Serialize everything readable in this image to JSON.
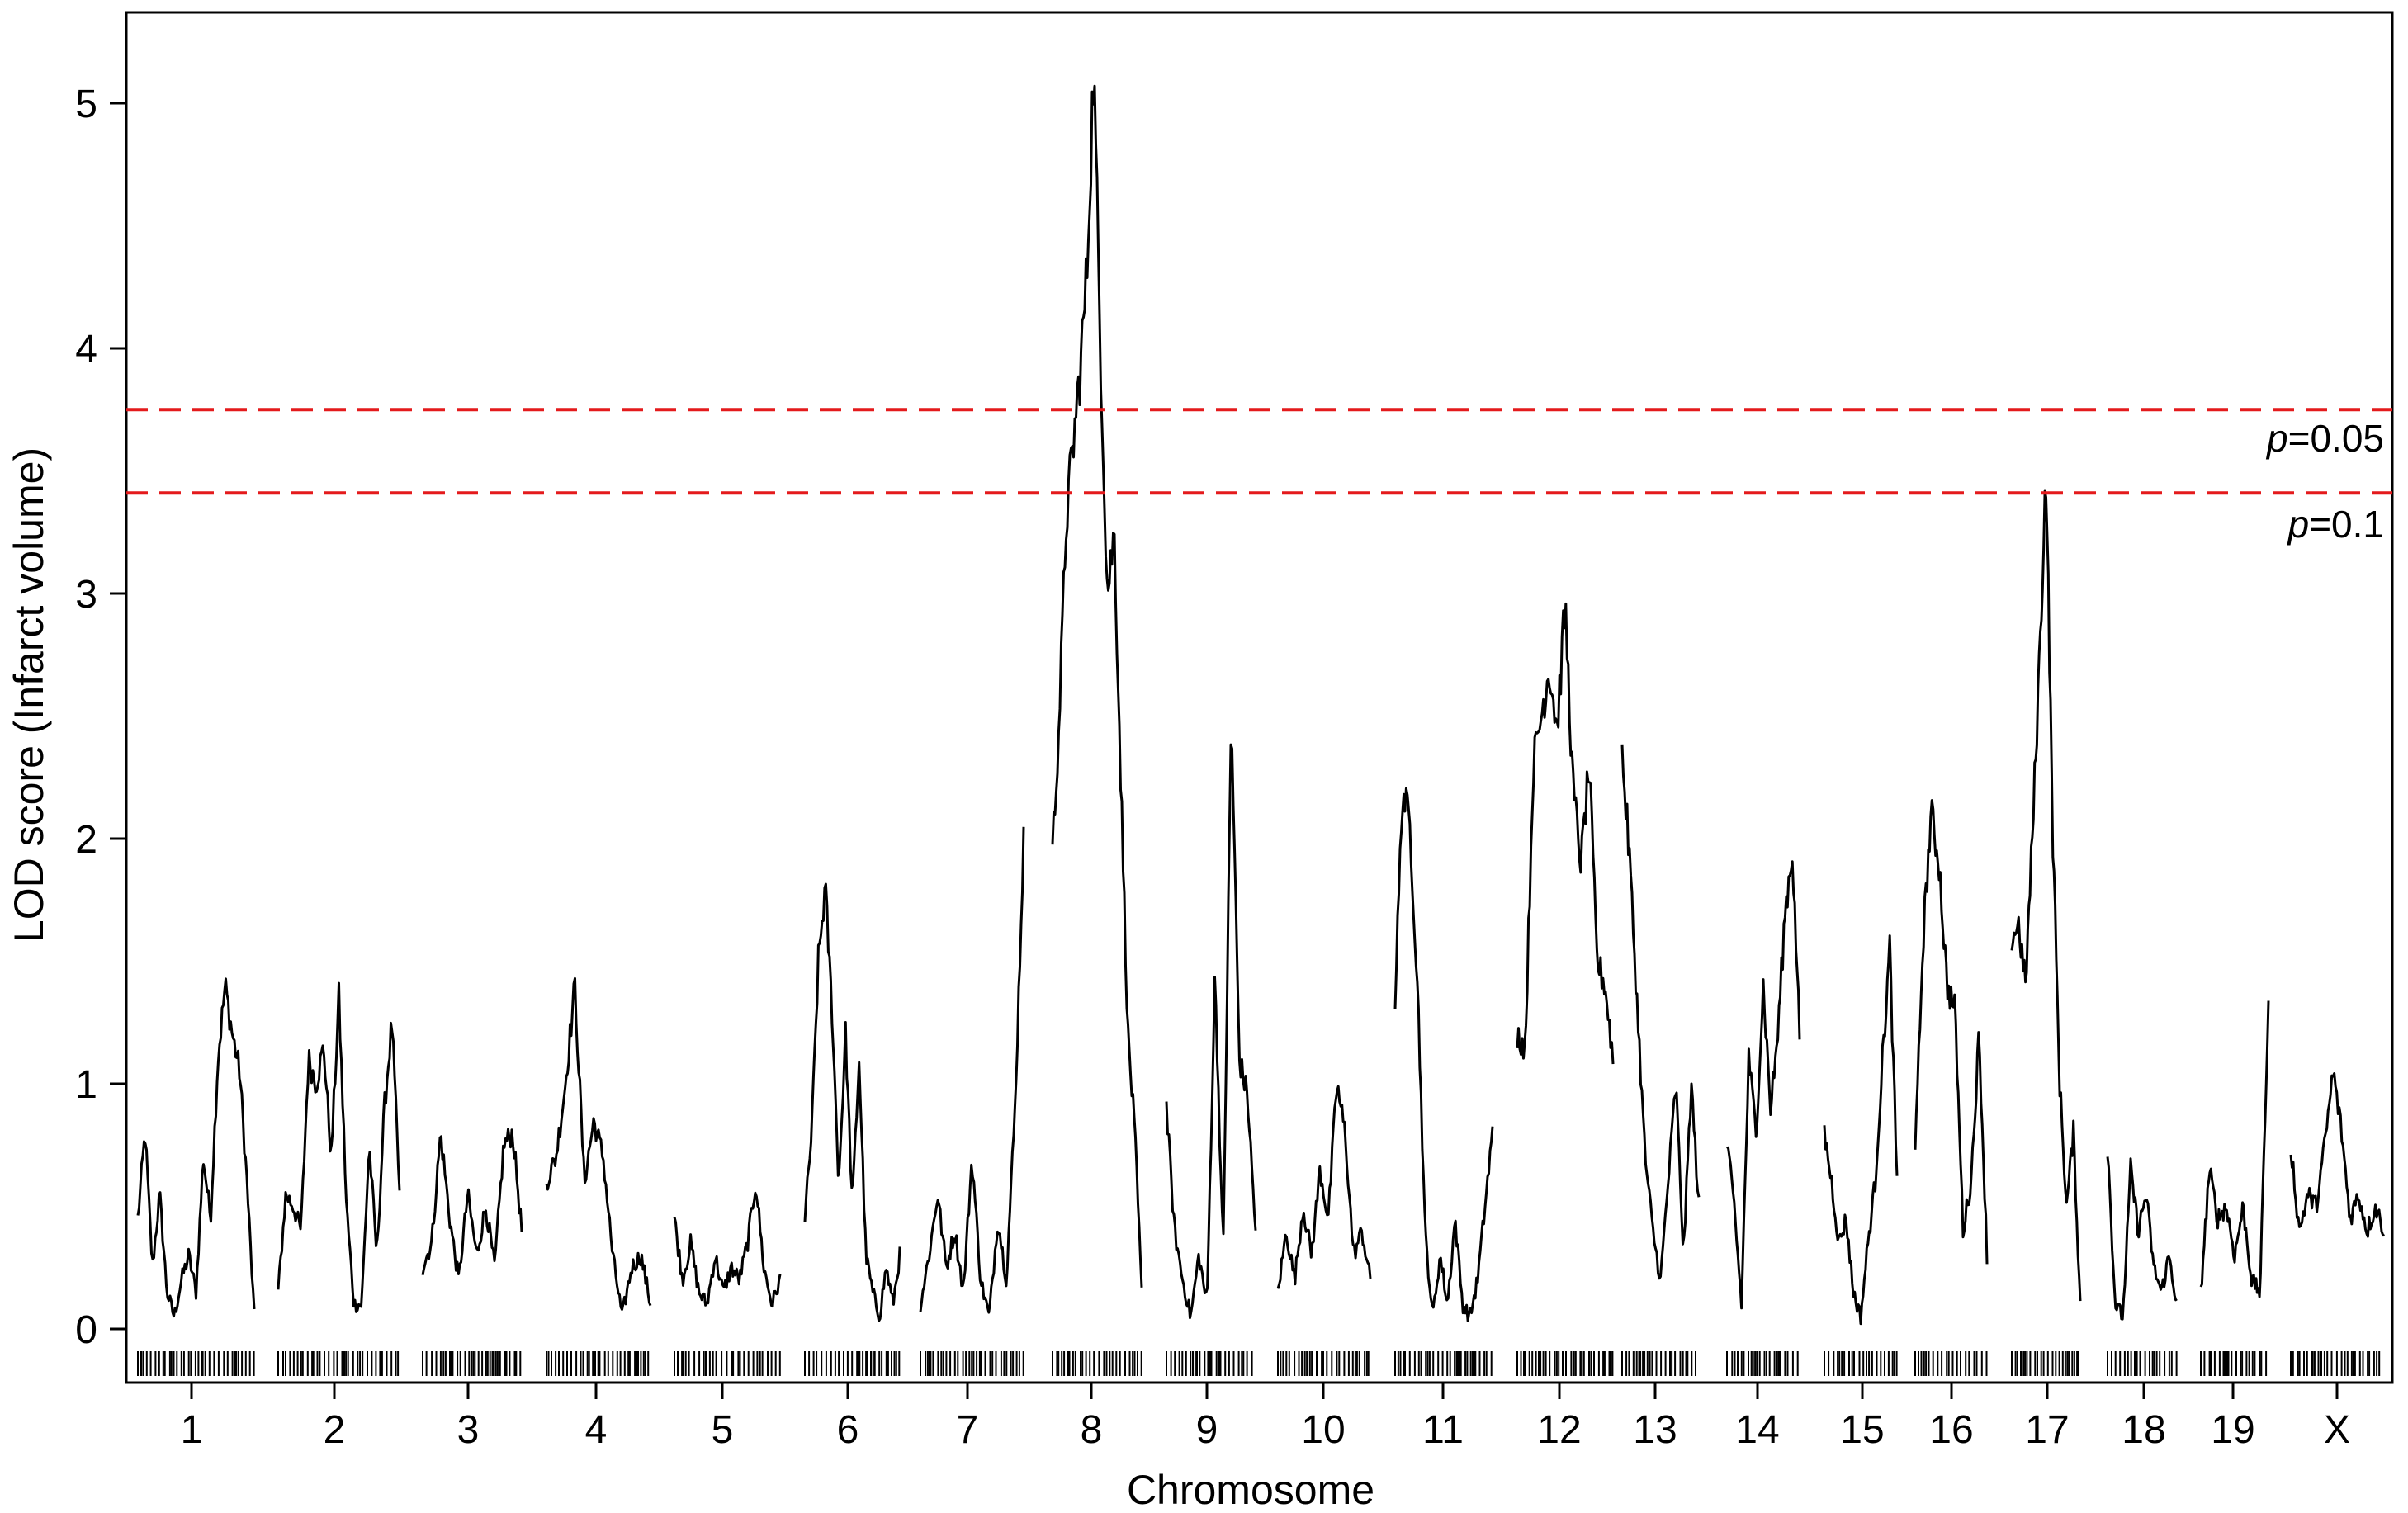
{
  "chart_data": {
    "type": "line",
    "title": "",
    "xlabel": "Chromosome",
    "ylabel": "LOD score (Infarct volume)",
    "ylim": [
      -0.15,
      5.35
    ],
    "yticks": [
      "0",
      "1",
      "2",
      "3",
      "4",
      "5"
    ],
    "grid": false,
    "legend": "none",
    "line_color": "#000000",
    "threshold_color": "#e41a1c",
    "thresholds": [
      {
        "value": 3.75,
        "label_italic": "p",
        "label_rest": "=0.05"
      },
      {
        "value": 3.41,
        "label_italic": "p",
        "label_rest": "=0.1"
      }
    ],
    "chromosomes": [
      {
        "name": "1",
        "lod": [
          0.45,
          0.8,
          0.25,
          0.55,
          0.15,
          0.05,
          0.2,
          0.3,
          0.15,
          0.7,
          0.45,
          1.1,
          1.4,
          1.2,
          1.05,
          0.6,
          0.05
        ]
      },
      {
        "name": "2",
        "lod": [
          0.15,
          0.55,
          0.5,
          0.4,
          1.1,
          1.0,
          1.15,
          0.7,
          1.35,
          0.5,
          0.1,
          0.1,
          0.75,
          0.3,
          0.9,
          1.25,
          0.55
        ]
      },
      {
        "name": "3",
        "lod": [
          0.25,
          0.35,
          0.8,
          0.45,
          0.2,
          0.55,
          0.3,
          0.5,
          0.25,
          0.75,
          0.8,
          0.4
        ]
      },
      {
        "name": "4",
        "lod": [
          0.6,
          0.7,
          1.0,
          1.4,
          0.6,
          0.85,
          0.7,
          0.3,
          0.05,
          0.25,
          0.3,
          0.1
        ]
      },
      {
        "name": "5",
        "lod": [
          0.45,
          0.2,
          0.35,
          0.15,
          0.1,
          0.3,
          0.15,
          0.25,
          0.2,
          0.35,
          0.6,
          0.25,
          0.1,
          0.2
        ]
      },
      {
        "name": "6",
        "lod": [
          0.45,
          0.8,
          1.5,
          1.8,
          1.3,
          0.6,
          1.2,
          0.5,
          1.1,
          0.3,
          0.15,
          0.05,
          0.25,
          0.1,
          0.3
        ]
      },
      {
        "name": "7",
        "lod": [
          0.1,
          0.3,
          0.55,
          0.25,
          0.4,
          0.15,
          0.7,
          0.2,
          0.05,
          0.45,
          0.2,
          0.9,
          2.0
        ]
      },
      {
        "name": "8",
        "lod": [
          1.95,
          2.5,
          3.3,
          3.6,
          3.9,
          4.3,
          5.15,
          4.0,
          3.0,
          3.25,
          2.2,
          1.2,
          0.8,
          0.15
        ]
      },
      {
        "name": "9",
        "lod": [
          0.9,
          0.4,
          0.2,
          0.05,
          0.3,
          0.1,
          1.45,
          0.3,
          2.5,
          1.1,
          0.95,
          0.4
        ]
      },
      {
        "name": "10",
        "lod": [
          0.15,
          0.4,
          0.2,
          0.5,
          0.3,
          0.65,
          0.45,
          1.0,
          0.8,
          0.3,
          0.4,
          0.2
        ]
      },
      {
        "name": "11",
        "lod": [
          1.35,
          2.2,
          2.05,
          1.4,
          0.4,
          0.05,
          0.3,
          0.1,
          0.45,
          0.1,
          0.05,
          0.2,
          0.5,
          0.8
        ]
      },
      {
        "name": "12",
        "lod": [
          1.2,
          1.15,
          2.3,
          2.5,
          2.7,
          2.45,
          2.95,
          2.2,
          1.9,
          2.3,
          1.5,
          1.4,
          1.1
        ]
      },
      {
        "name": "13",
        "lod": [
          2.35,
          1.9,
          1.3,
          0.7,
          0.4,
          0.2,
          0.6,
          1.0,
          0.3,
          1.0,
          0.5
        ]
      },
      {
        "name": "14",
        "lod": [
          0.75,
          0.5,
          0.1,
          1.1,
          0.8,
          1.4,
          0.9,
          1.2,
          1.7,
          1.95,
          1.2
        ]
      },
      {
        "name": "15",
        "lod": [
          0.8,
          0.6,
          0.35,
          0.45,
          0.15,
          0.05,
          0.35,
          0.6,
          1.1,
          1.55,
          0.6
        ]
      },
      {
        "name": "16",
        "lod": [
          0.7,
          1.6,
          2.1,
          1.9,
          1.4,
          1.3,
          0.4,
          0.6,
          1.2,
          0.3
        ]
      },
      {
        "name": "17",
        "lod": [
          1.6,
          1.65,
          1.4,
          2.0,
          2.7,
          3.5,
          2.0,
          1.0,
          0.5,
          0.8,
          0.1
        ]
      },
      {
        "name": "18",
        "lod": [
          0.75,
          0.1,
          0.05,
          0.65,
          0.4,
          0.55,
          0.25,
          0.15,
          0.3,
          0.1
        ]
      },
      {
        "name": "19",
        "lod": [
          0.15,
          0.65,
          0.45,
          0.5,
          0.3,
          0.5,
          0.2,
          0.15,
          1.35
        ]
      },
      {
        "name": "X",
        "lod": [
          0.75,
          0.4,
          0.55,
          0.5,
          0.75,
          1.05,
          0.8,
          0.45,
          0.55,
          0.4,
          0.5,
          0.4
        ]
      }
    ]
  }
}
